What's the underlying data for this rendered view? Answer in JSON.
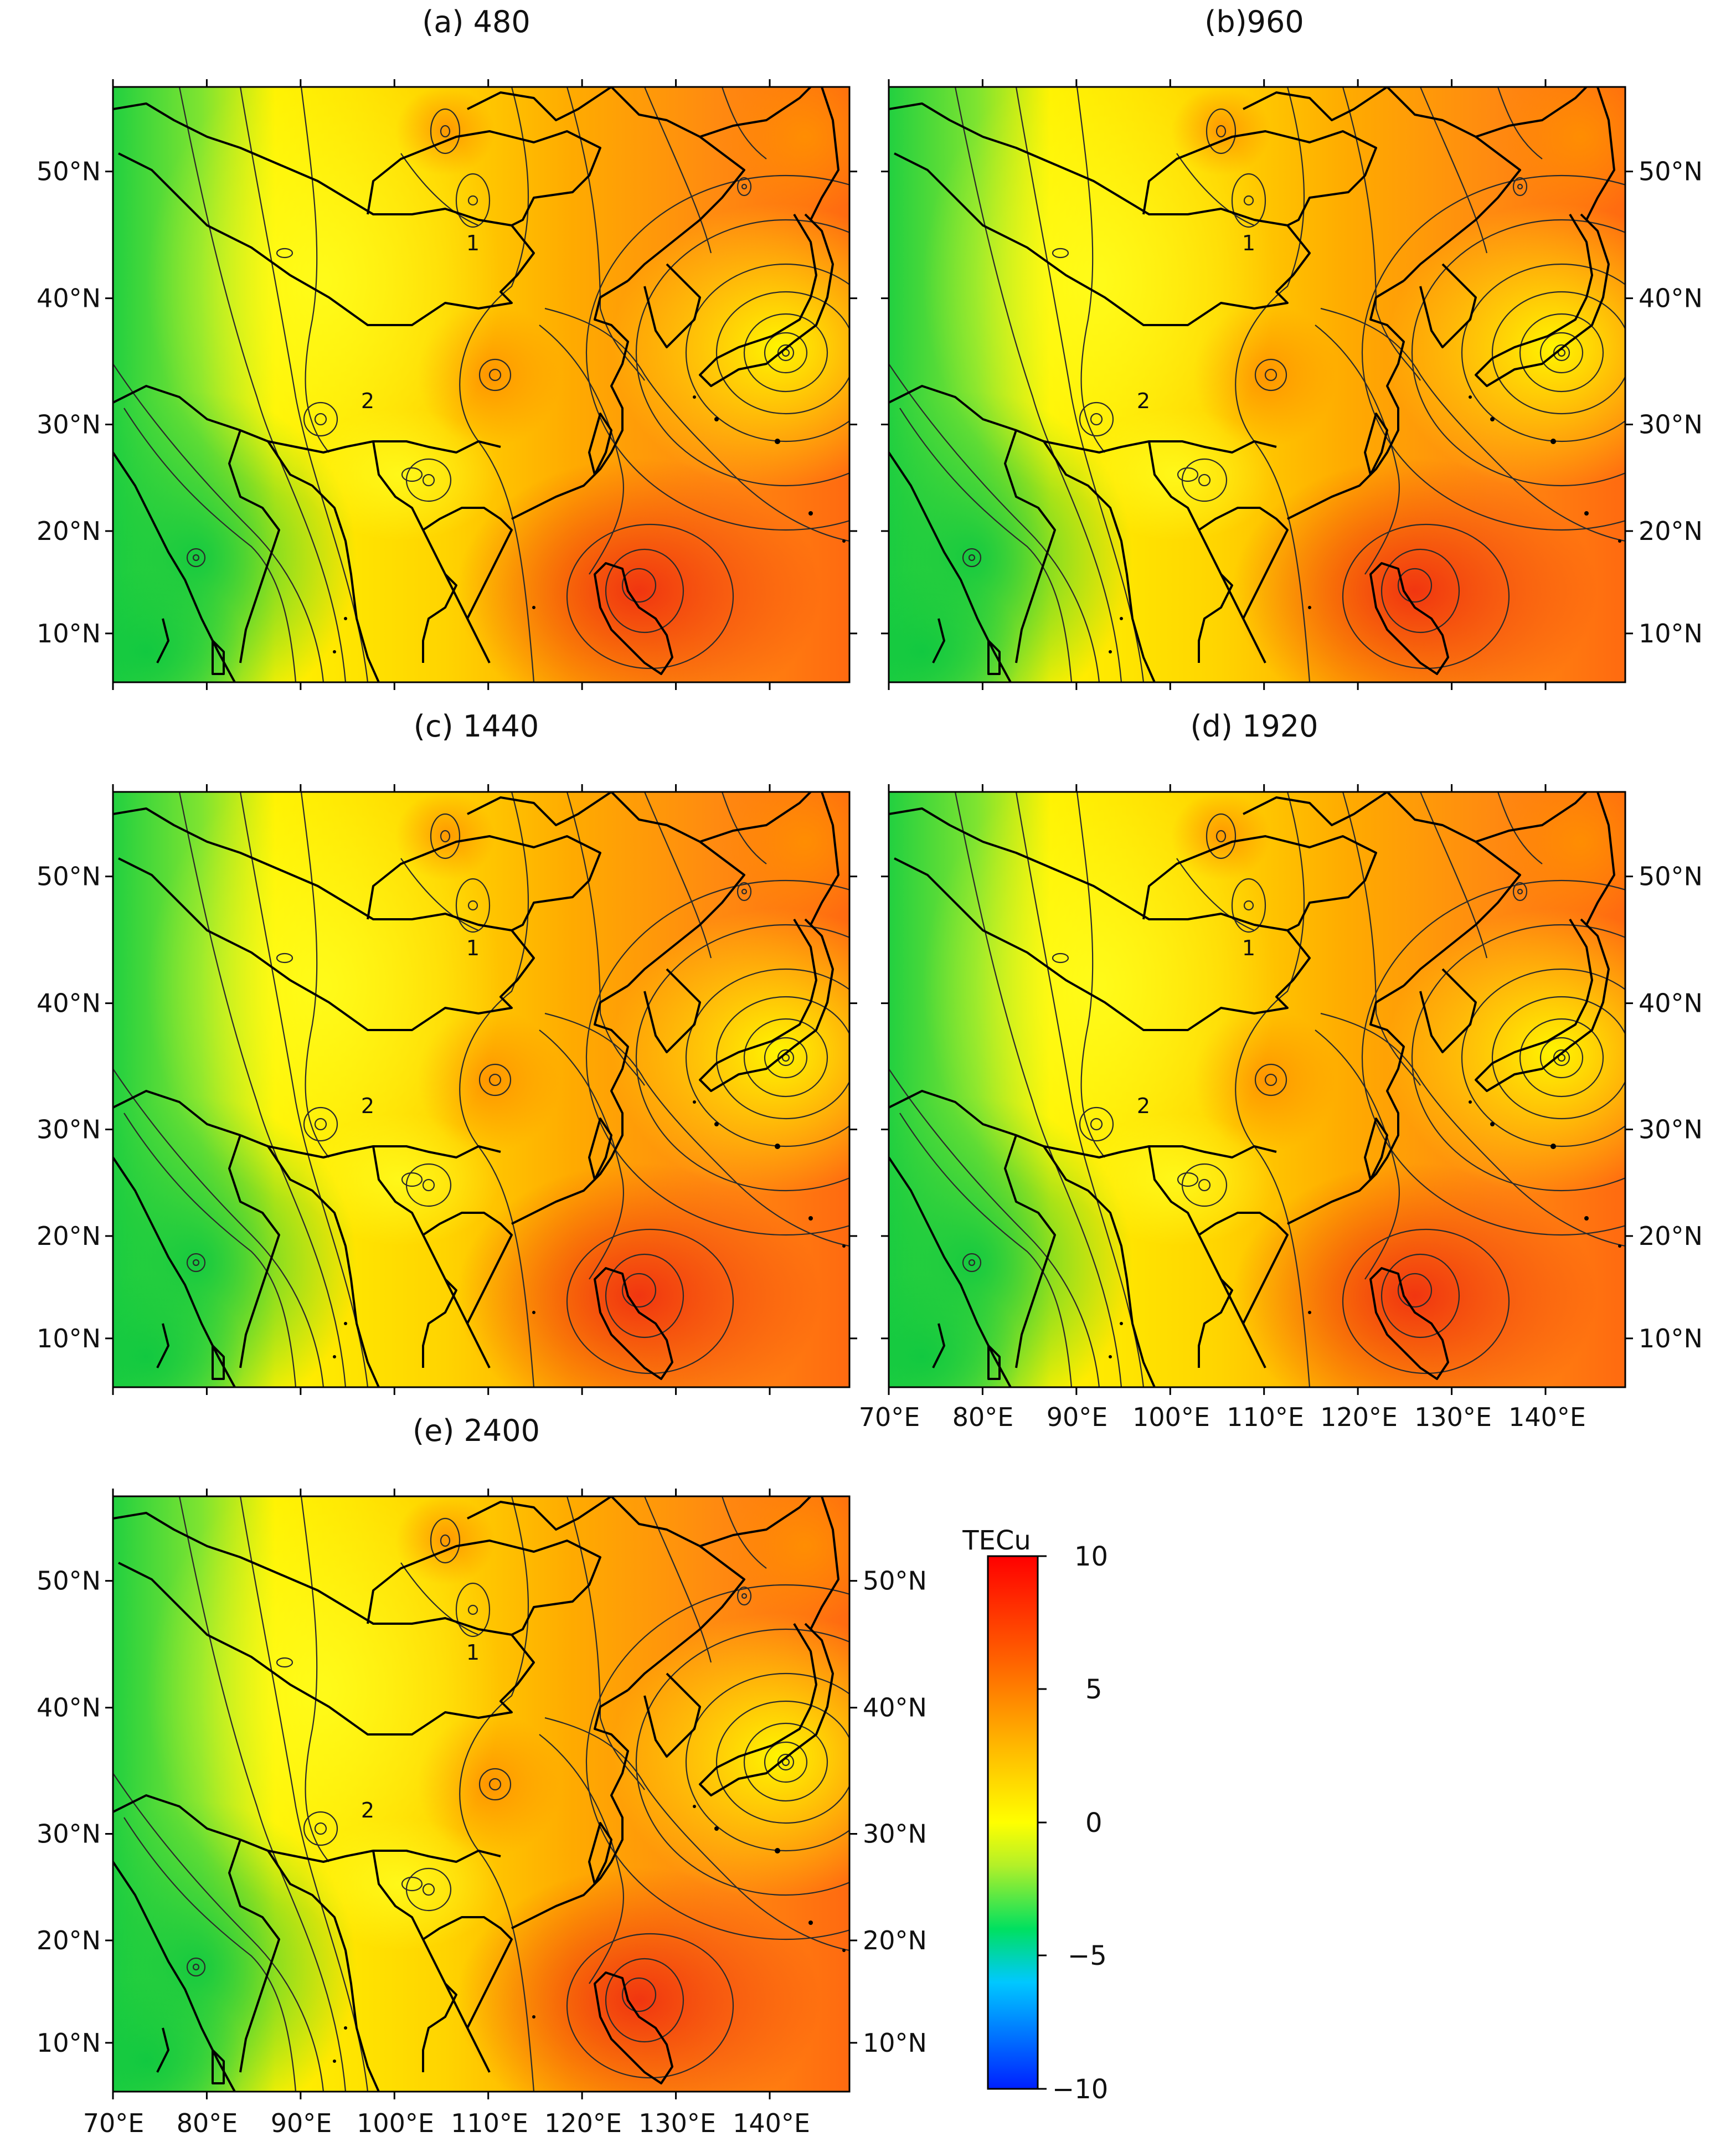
{
  "colorbar": {
    "unit_label": "TECu",
    "ticks": [
      "10",
      "5",
      "0",
      "−5",
      "−10"
    ],
    "range": [
      -10,
      10
    ],
    "stops": [
      "#0020ff",
      "#00c8ff",
      "#00e060",
      "#b4f028",
      "#ffff00",
      "#ffb400",
      "#ff6400",
      "#ff0000"
    ]
  },
  "lon_ticks": [
    "70°E",
    "80°E",
    "90°E",
    "100°E",
    "110°E",
    "120°E",
    "130°E",
    "140°E"
  ],
  "lat_ticks": [
    "50°N",
    "40°N",
    "30°N",
    "20°N",
    "10°N"
  ],
  "contour_labels": [
    "1",
    "2"
  ],
  "panels": [
    {
      "title": "(a) 480"
    },
    {
      "title": "(b)960"
    },
    {
      "title": "(c) 1440"
    },
    {
      "title": "(d) 1920"
    },
    {
      "title": "(e) 2400"
    }
  ]
}
